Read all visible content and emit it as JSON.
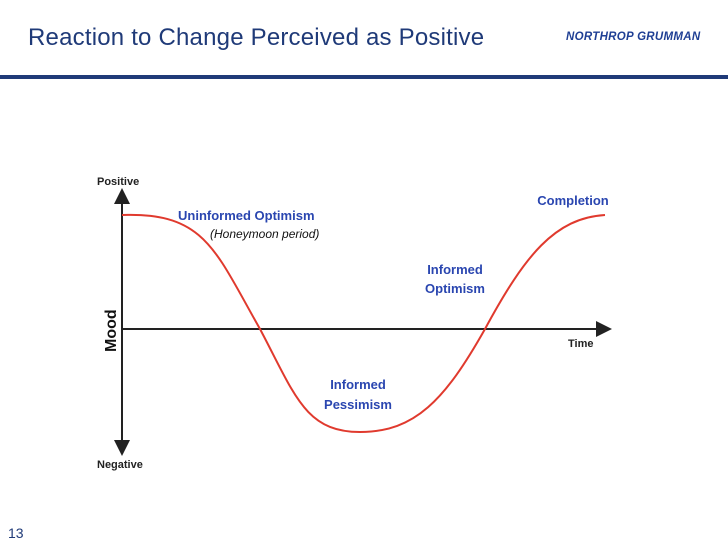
{
  "slide": {
    "title": "Reaction to Change Perceived as Positive",
    "page_number": "13"
  },
  "logo": {
    "text": "NORTHROP GRUMMAN"
  },
  "diagram": {
    "y_axis_top_label": "Positive",
    "y_axis_bottom_label": "Negative",
    "y_axis_title": "Mood",
    "x_axis_label": "Time",
    "stages": {
      "uninformed_optimism": "Uninformed Optimism",
      "honeymoon": "(Honeymoon period)",
      "informed_pessimism_line1": "Informed",
      "informed_pessimism_line2": "Pessimism",
      "informed_optimism_line1": "Informed",
      "informed_optimism_line2": "Optimism",
      "completion": "Completion"
    },
    "colors": {
      "curve": "#e03a2e",
      "axis": "#222222",
      "annotation": "#2a46b0",
      "title": "#1f3a78"
    }
  }
}
